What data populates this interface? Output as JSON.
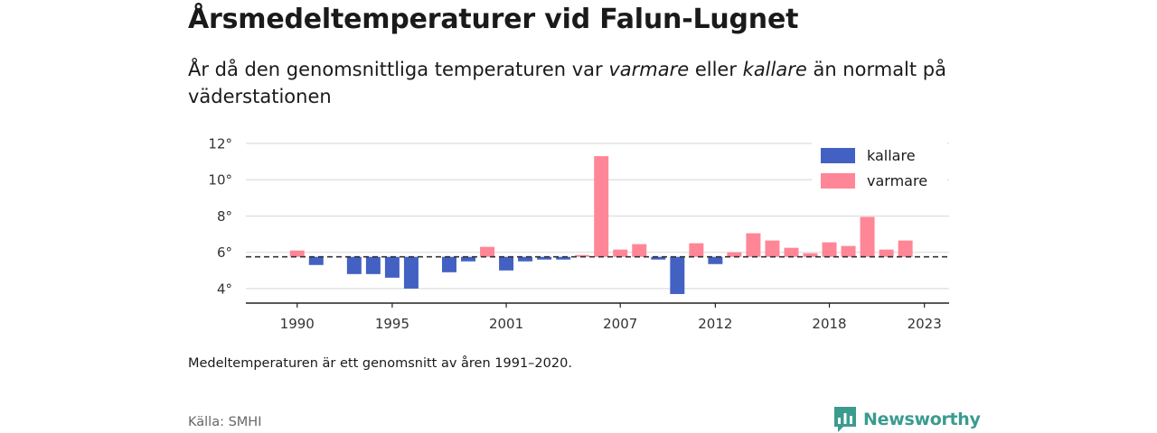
{
  "title": "Årsmedeltemperaturer vid Falun-Lugnet",
  "subtitle": {
    "part1": "År då den genomsnittliga temperaturen var ",
    "warm_word": "varmare",
    "part2": " eller ",
    "cold_word": "kallare",
    "part3": " än normalt på väderstationen"
  },
  "note": "Medeltemperaturen är ett genomsnitt av åren 1991–2020.",
  "source": "Källa: SMHI",
  "logo": {
    "text": "Newsworthy",
    "icon": "chart-bubble-icon",
    "color": "#3b9b8f"
  },
  "chart_data": {
    "type": "bar",
    "baseline": 5.75,
    "ylim": [
      3.2,
      12.2
    ],
    "xlim": [
      1987.3,
      2024.3
    ],
    "yticks": [
      4,
      6,
      8,
      10,
      12
    ],
    "ytick_labels": [
      "4°",
      "6°",
      "8°",
      "10°",
      "12°"
    ],
    "xticks": [
      1990,
      1995,
      2001,
      2007,
      2012,
      2018,
      2023
    ],
    "xtick_labels": [
      "1990",
      "1995",
      "2001",
      "2007",
      "2012",
      "2018",
      "2023"
    ],
    "grid": true,
    "legend_position": "top-right",
    "colors": {
      "cold": "#4361c2",
      "warm": "#ff8696",
      "baseline": "#333333",
      "grid": "#dddddd",
      "axis": "#222222"
    },
    "legend": [
      {
        "key": "cold",
        "label": "kallare"
      },
      {
        "key": "warm",
        "label": "varmare"
      }
    ],
    "x": [
      1990,
      1991,
      1993,
      1994,
      1995,
      1996,
      1998,
      1999,
      2000,
      2001,
      2002,
      2003,
      2004,
      2005,
      2006,
      2007,
      2008,
      2009,
      2010,
      2011,
      2012,
      2013,
      2014,
      2015,
      2016,
      2017,
      2018,
      2019,
      2020,
      2021,
      2022
    ],
    "values": [
      6.1,
      5.3,
      4.8,
      4.8,
      4.6,
      4.0,
      4.9,
      5.5,
      6.3,
      5.0,
      5.5,
      5.6,
      5.6,
      5.85,
      11.3,
      6.15,
      6.45,
      5.6,
      3.7,
      6.5,
      5.35,
      6.0,
      7.05,
      6.65,
      6.25,
      5.95,
      6.55,
      6.35,
      7.95,
      6.15,
      6.65
    ]
  }
}
